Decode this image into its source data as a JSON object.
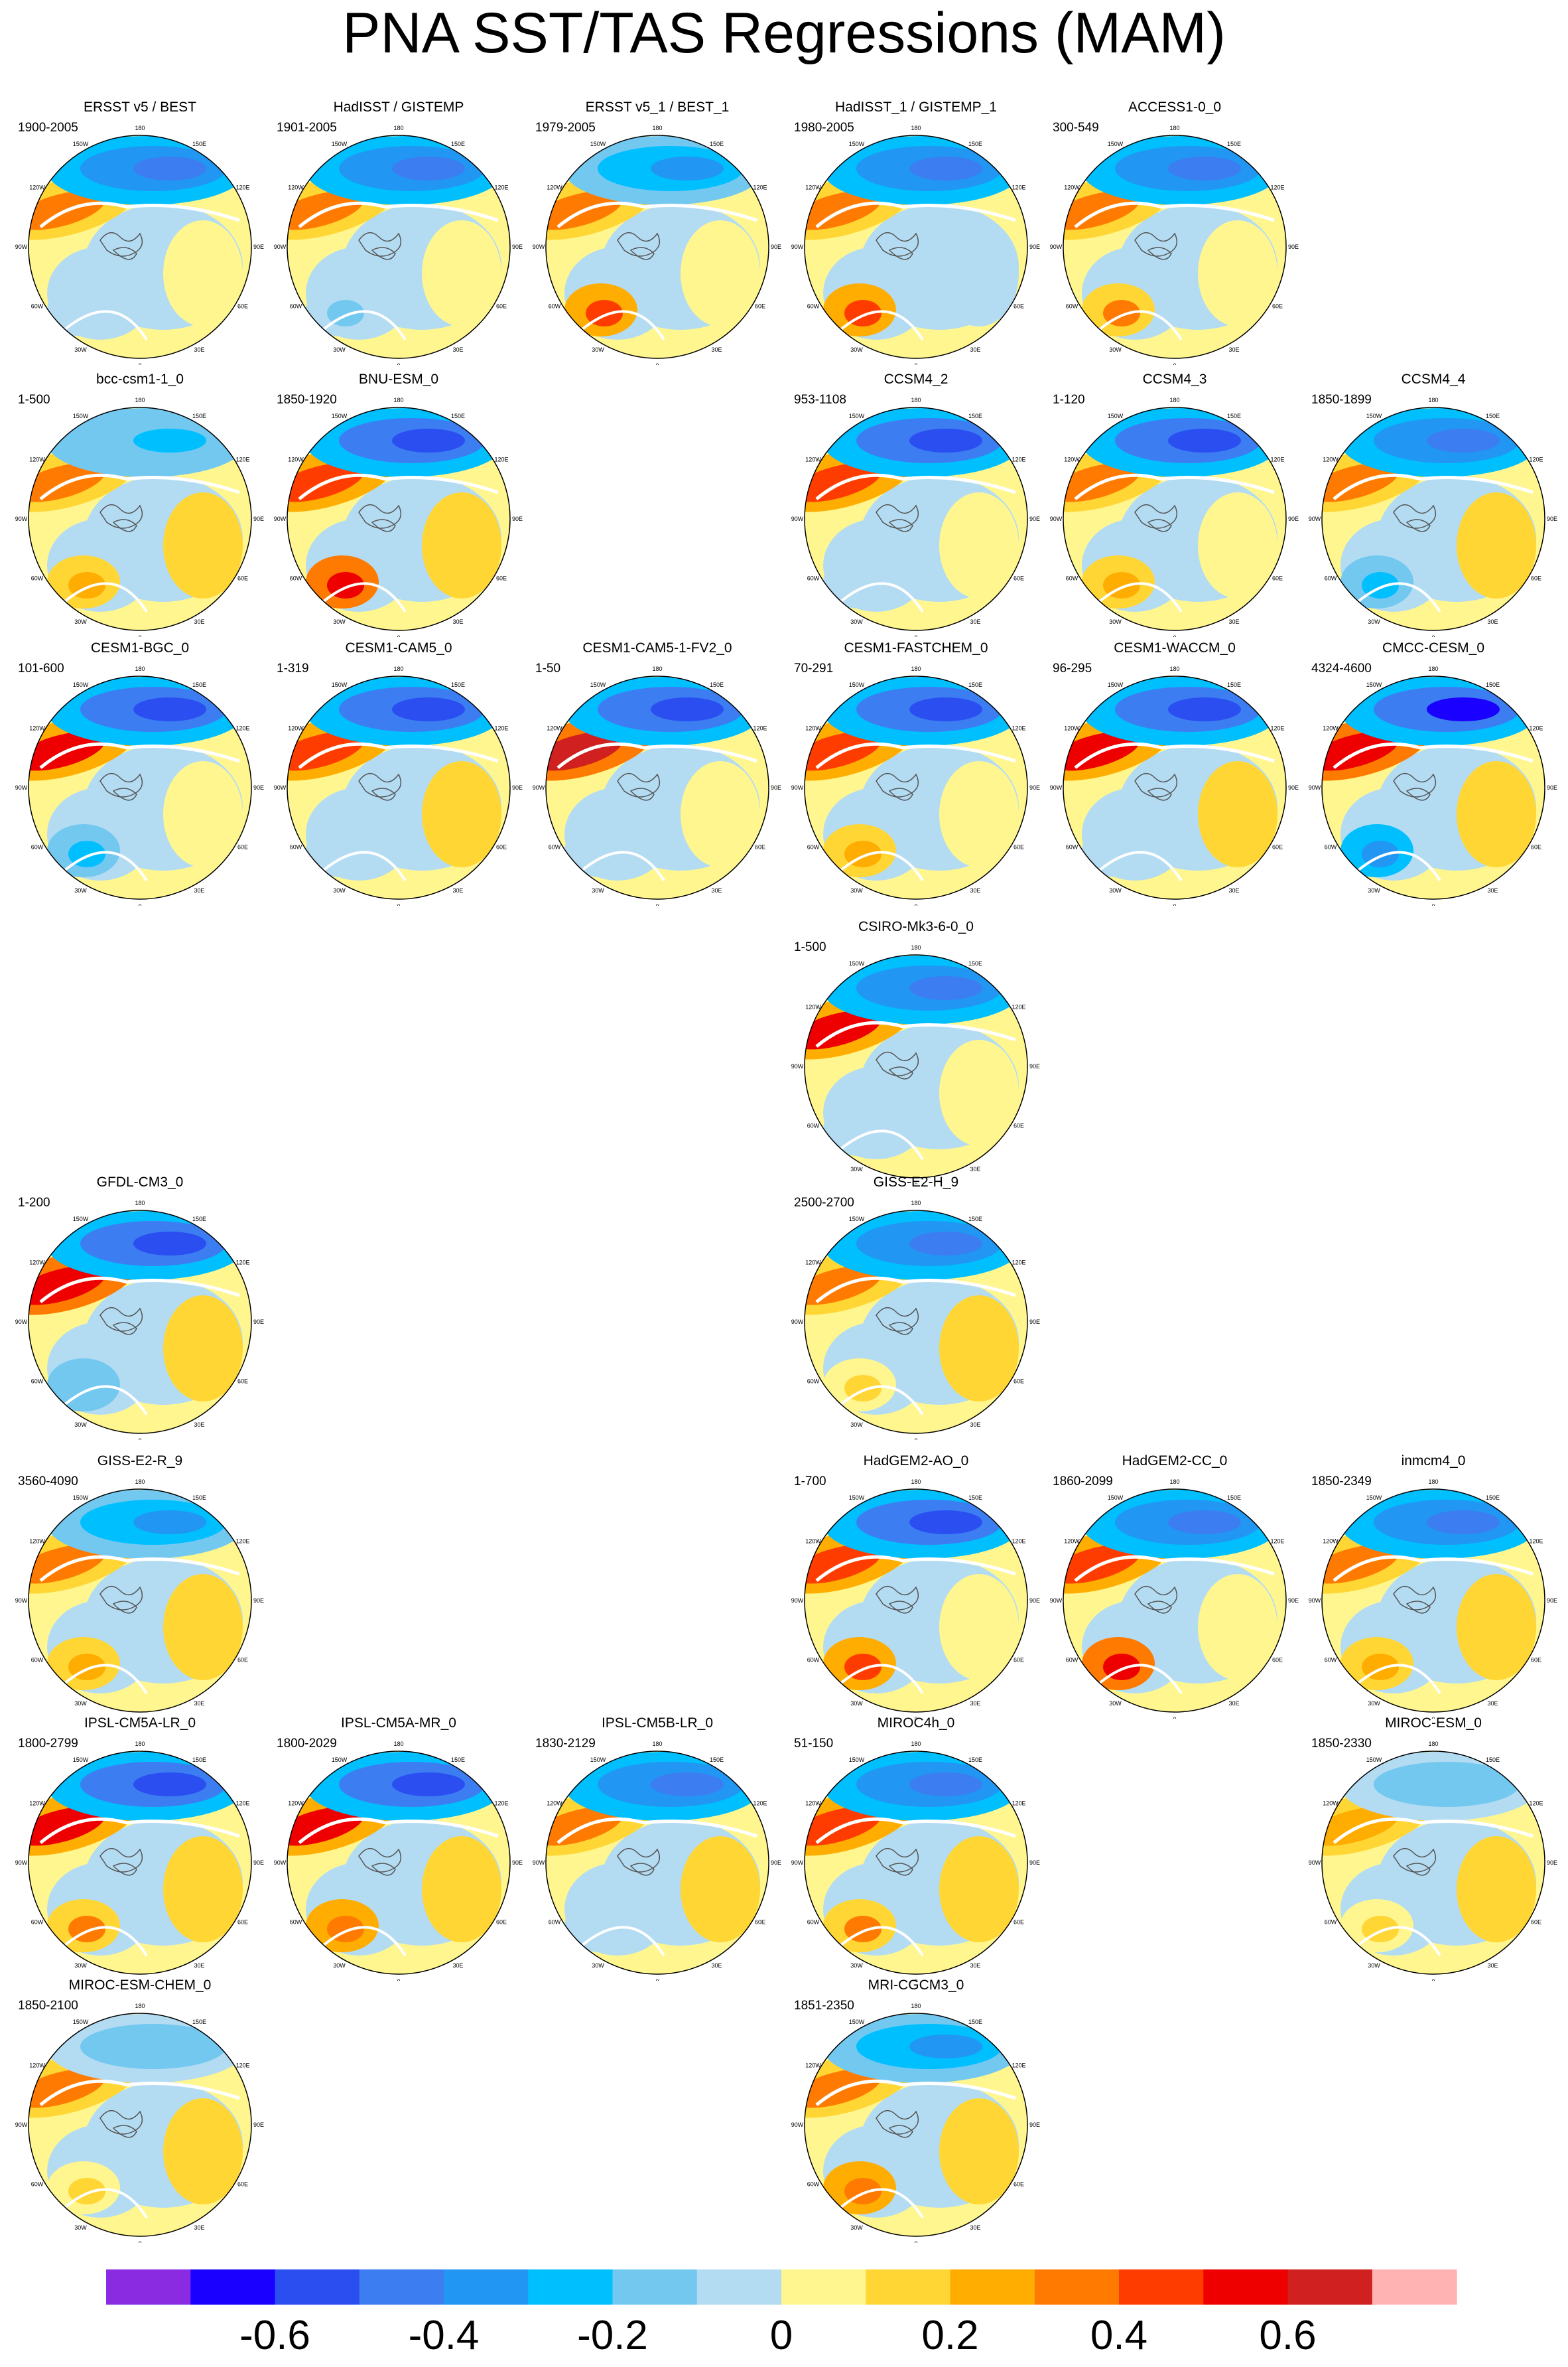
{
  "title": "PNA SST/TAS Regressions (MAM)",
  "lon_labels": [
    "180",
    "150E",
    "120E",
    "90E",
    "60E",
    "30E",
    "0",
    "30W",
    "60W",
    "90W",
    "120W",
    "150W"
  ],
  "colors": {
    "land_contour": "#555555",
    "ocean_mask": "#ffffff",
    "frame": "#000000"
  },
  "colorbar": {
    "tick_labels": [
      "-0.6",
      "-0.4",
      "-0.2",
      "0",
      "0.2",
      "0.4",
      "0.6"
    ],
    "colors": [
      "#8a2be2",
      "#1a00ff",
      "#2a4ef0",
      "#3c7ef2",
      "#2196f3",
      "#00bfff",
      "#73c8f0",
      "#b3dcf3",
      "#fff68f",
      "#ffd633",
      "#ffad00",
      "#ff7a00",
      "#ff3c00",
      "#ee0000",
      "#d02020",
      "#ffb3b3"
    ]
  },
  "chart_data": {
    "type": "heatmap",
    "title": "PNA SST/TAS Regressions (MAM)",
    "projection": "north-polar-stereographic",
    "value_range": [
      -0.8,
      0.8
    ],
    "panels": [
      {
        "name": "ERSST v5 / BEST",
        "years": "1900-2005",
        "row": 0,
        "col": 0,
        "pacific_low": -0.45,
        "alaska_high": 0.35,
        "atlantic": -0.1,
        "eurasia": 0.05
      },
      {
        "name": "HadISST / GISTEMP",
        "years": "1901-2005",
        "row": 0,
        "col": 1,
        "pacific_low": -0.45,
        "alaska_high": 0.35,
        "atlantic": -0.15,
        "eurasia": 0.05
      },
      {
        "name": "ERSST v5_1 / BEST_1",
        "years": "1979-2005",
        "row": 0,
        "col": 2,
        "pacific_low": -0.4,
        "alaska_high": 0.3,
        "atlantic": 0.4,
        "eurasia": 0.05
      },
      {
        "name": "HadISST_1 / GISTEMP_1",
        "years": "1980-2005",
        "row": 0,
        "col": 3,
        "pacific_low": -0.45,
        "alaska_high": 0.3,
        "atlantic": 0.45,
        "eurasia": -0.05
      },
      {
        "name": "ACCESS1-0_0",
        "years": "300-549",
        "row": 0,
        "col": 4,
        "pacific_low": -0.5,
        "alaska_high": 0.35,
        "atlantic": 0.3,
        "eurasia": 0.05
      },
      {
        "name": "bcc-csm1-1_0",
        "years": "1-500",
        "row": 1,
        "col": 0,
        "pacific_low": -0.25,
        "alaska_high": 0.3,
        "atlantic": 0.2,
        "eurasia": 0.1
      },
      {
        "name": "BNU-ESM_0",
        "years": "1850-1920",
        "row": 1,
        "col": 1,
        "pacific_low": -0.55,
        "alaska_high": 0.45,
        "atlantic": 0.5,
        "eurasia": 0.1
      },
      {
        "name": "CCSM4_2",
        "years": "953-1108",
        "row": 1,
        "col": 3,
        "pacific_low": -0.55,
        "alaska_high": 0.4,
        "atlantic": -0.1,
        "eurasia": 0.05
      },
      {
        "name": "CCSM4_3",
        "years": "1-120",
        "row": 1,
        "col": 4,
        "pacific_low": -0.55,
        "alaska_high": 0.35,
        "atlantic": 0.25,
        "eurasia": 0.05
      },
      {
        "name": "CCSM4_4",
        "years": "1850-1899",
        "row": 1,
        "col": 5,
        "pacific_low": -0.5,
        "alaska_high": 0.3,
        "atlantic": -0.3,
        "eurasia": 0.1
      },
      {
        "name": "CESM1-BGC_0",
        "years": "101-600",
        "row": 2,
        "col": 0,
        "pacific_low": -0.55,
        "alaska_high": 0.5,
        "atlantic": -0.3,
        "eurasia": 0.05
      },
      {
        "name": "CESM1-CAM5_0",
        "years": "1-319",
        "row": 2,
        "col": 1,
        "pacific_low": -0.55,
        "alaska_high": 0.45,
        "atlantic": -0.1,
        "eurasia": 0.1
      },
      {
        "name": "CESM1-CAM5-1-FV2_0",
        "years": "1-50",
        "row": 2,
        "col": 2,
        "pacific_low": -0.6,
        "alaska_high": 0.65,
        "atlantic": -0.1,
        "eurasia": 0.05
      },
      {
        "name": "CESM1-FASTCHEM_0",
        "years": "70-291",
        "row": 2,
        "col": 3,
        "pacific_low": -0.55,
        "alaska_high": 0.45,
        "atlantic": 0.25,
        "eurasia": 0.05
      },
      {
        "name": "CESM1-WACCM_0",
        "years": "96-295",
        "row": 2,
        "col": 4,
        "pacific_low": -0.6,
        "alaska_high": 0.55,
        "atlantic": -0.1,
        "eurasia": 0.1
      },
      {
        "name": "CMCC-CESM_0",
        "years": "4324-4600",
        "row": 2,
        "col": 5,
        "pacific_low": -0.65,
        "alaska_high": 0.6,
        "atlantic": -0.35,
        "eurasia": 0.1
      },
      {
        "name": "CSIRO-Mk3-6-0_0",
        "years": "1-500",
        "row": 3,
        "col": 3,
        "pacific_low": -0.5,
        "alaska_high": 0.55,
        "atlantic": -0.1,
        "eurasia": 0.05
      },
      {
        "name": "GFDL-CM3_0",
        "years": "1-200",
        "row": 4,
        "col": 0,
        "pacific_low": -0.6,
        "alaska_high": 0.6,
        "atlantic": -0.2,
        "eurasia": 0.1
      },
      {
        "name": "GISS-E2-H_9",
        "years": "2500-2700",
        "row": 4,
        "col": 3,
        "pacific_low": -0.45,
        "alaska_high": 0.3,
        "atlantic": 0.1,
        "eurasia": 0.1
      },
      {
        "name": "GISS-E2-R_9",
        "years": "3560-4090",
        "row": 5,
        "col": 0,
        "pacific_low": -0.35,
        "alaska_high": 0.3,
        "atlantic": 0.25,
        "eurasia": 0.1
      },
      {
        "name": "HadGEM2-AO_0",
        "years": "1-700",
        "row": 5,
        "col": 3,
        "pacific_low": -0.55,
        "alaska_high": 0.45,
        "atlantic": 0.4,
        "eurasia": 0.05
      },
      {
        "name": "HadGEM2-CC_0",
        "years": "1860-2099",
        "row": 5,
        "col": 4,
        "pacific_low": -0.5,
        "alaska_high": 0.4,
        "atlantic": 0.55,
        "eurasia": 0.05
      },
      {
        "name": "inmcm4_0",
        "years": "1850-2349",
        "row": 5,
        "col": 5,
        "pacific_low": -0.45,
        "alaska_high": 0.35,
        "atlantic": 0.2,
        "eurasia": 0.1
      },
      {
        "name": "IPSL-CM5A-LR_0",
        "years": "1800-2799",
        "row": 6,
        "col": 0,
        "pacific_low": -0.55,
        "alaska_high": 0.55,
        "atlantic": 0.3,
        "eurasia": 0.1
      },
      {
        "name": "IPSL-CM5A-MR_0",
        "years": "1800-2029",
        "row": 6,
        "col": 1,
        "pacific_low": -0.55,
        "alaska_high": 0.5,
        "atlantic": 0.35,
        "eurasia": 0.1
      },
      {
        "name": "IPSL-CM5B-LR_0",
        "years": "1830-2129",
        "row": 6,
        "col": 2,
        "pacific_low": -0.5,
        "alaska_high": 0.35,
        "atlantic": -0.1,
        "eurasia": 0.1
      },
      {
        "name": "MIROC4h_0",
        "years": "51-150",
        "row": 6,
        "col": 3,
        "pacific_low": -0.45,
        "alaska_high": 0.4,
        "atlantic": 0.3,
        "eurasia": 0.1
      },
      {
        "name": "MIROC-ESM_0",
        "years": "1850-2330",
        "row": 6,
        "col": 5,
        "pacific_low": -0.2,
        "alaska_high": 0.25,
        "atlantic": 0.1,
        "eurasia": 0.15
      },
      {
        "name": "MIROC-ESM-CHEM_0",
        "years": "1850-2100",
        "row": 7,
        "col": 0,
        "pacific_low": -0.15,
        "alaska_high": 0.3,
        "atlantic": 0.1,
        "eurasia": 0.15
      },
      {
        "name": "MRI-CGCM3_0",
        "years": "1851-2350",
        "row": 7,
        "col": 3,
        "pacific_low": -0.4,
        "alaska_high": 0.3,
        "atlantic": 0.35,
        "eurasia": 0.1
      }
    ]
  }
}
